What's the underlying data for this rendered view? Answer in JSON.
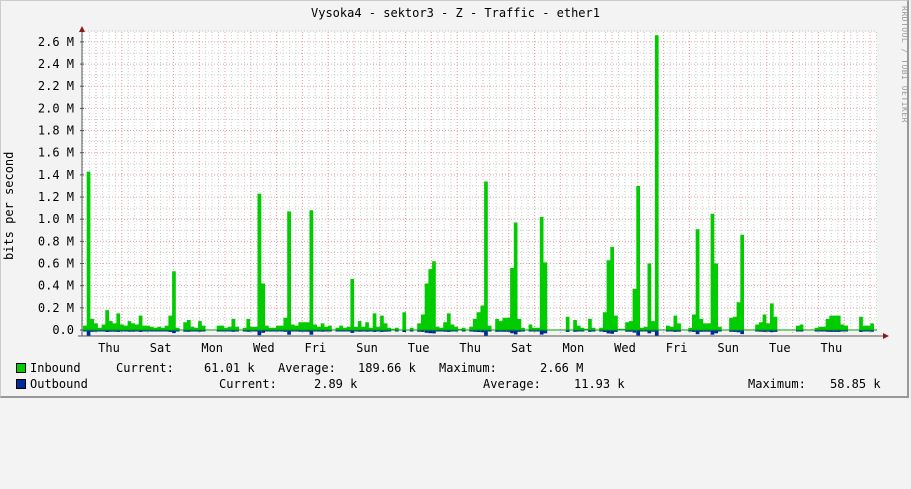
{
  "title": "Vysoka4 - sektor3 - Z - Traffic - ether1",
  "watermark": "RRDTOOL / TOBI OETIKER",
  "chart_data": {
    "type": "area",
    "title": "Vysoka4 - sektor3 - Z - Traffic - ether1",
    "ylabel": "bits per second",
    "xlabel": "",
    "ylim": [
      0,
      2.7
    ],
    "y_unit": "M",
    "y_ticks": [
      "0.0",
      "0.2 M",
      "0.4 M",
      "0.6 M",
      "0.8 M",
      "1.0 M",
      "1.2 M",
      "1.4 M",
      "1.6 M",
      "1.8 M",
      "2.0 M",
      "2.2 M",
      "2.4 M",
      "2.6 M"
    ],
    "x_ticks": [
      "Thu",
      "Sat",
      "Mon",
      "Wed",
      "Fri",
      "Sun",
      "Tue",
      "Thu",
      "Sat",
      "Mon",
      "Wed",
      "Fri",
      "Sun",
      "Tue",
      "Thu"
    ],
    "grid": true,
    "legend_position": "bottom",
    "series": [
      {
        "name": "Inbound",
        "color": "#00cc00",
        "style": "area",
        "values": [
          0.04,
          1.43,
          0.1,
          0.06,
          0.02,
          0.05,
          0.18,
          0.08,
          0.06,
          0.15,
          0.05,
          0.04,
          0.08,
          0.06,
          0.05,
          0.13,
          0.04,
          0.04,
          0.03,
          0.02,
          0.03,
          0.02,
          0.04,
          0.13,
          0.53,
          0.02,
          0.0,
          0.07,
          0.09,
          0.03,
          0.02,
          0.08,
          0.04,
          0.0,
          0.0,
          0.0,
          0.04,
          0.04,
          0.02,
          0.03,
          0.1,
          0.03,
          0.0,
          0.02,
          0.1,
          0.03,
          0.03,
          1.23,
          0.42,
          0.04,
          0.02,
          0.02,
          0.04,
          0.04,
          0.11,
          1.07,
          0.05,
          0.04,
          0.07,
          0.07,
          0.07,
          1.08,
          0.05,
          0.03,
          0.06,
          0.03,
          0.04,
          0.0,
          0.02,
          0.04,
          0.02,
          0.03,
          0.46,
          0.03,
          0.08,
          0.03,
          0.07,
          0.02,
          0.15,
          0.03,
          0.13,
          0.06,
          0.02,
          0.01,
          0.02,
          0.0,
          0.16,
          0.0,
          0.02,
          0.0,
          0.06,
          0.14,
          0.42,
          0.55,
          0.62,
          0.03,
          0.02,
          0.07,
          0.15,
          0.05,
          0.03,
          0.01,
          0.02,
          0.0,
          0.03,
          0.1,
          0.16,
          0.22,
          1.34,
          0.04,
          0.0,
          0.1,
          0.08,
          0.11,
          0.11,
          0.56,
          0.97,
          0.1,
          0.02,
          0.0,
          0.05,
          0.02,
          0.02,
          1.02,
          0.61,
          0.0,
          0.0,
          0.0,
          0.0,
          0.0,
          0.12,
          0.0,
          0.09,
          0.04,
          0.02,
          0.01,
          0.1,
          0.02,
          0.0,
          0.02,
          0.16,
          0.63,
          0.75,
          0.13,
          0.01,
          0.01,
          0.07,
          0.08,
          0.37,
          1.3,
          0.02,
          0.03,
          0.6,
          0.08,
          2.66,
          0.0,
          0.0,
          0.04,
          0.03,
          0.13,
          0.06,
          0.0,
          0.0,
          0.02,
          0.14,
          0.91,
          0.1,
          0.06,
          0.06,
          1.05,
          0.6,
          0.03,
          0.0,
          0.0,
          0.11,
          0.12,
          0.25,
          0.86,
          0.0,
          0.0,
          0.0,
          0.05,
          0.07,
          0.14,
          0.06,
          0.24,
          0.12,
          0.0,
          0.0,
          0.0,
          0.0,
          0.0,
          0.04,
          0.05,
          0.0,
          0.0,
          0.0,
          0.02,
          0.03,
          0.03,
          0.1,
          0.13,
          0.13,
          0.13,
          0.05,
          0.04,
          0.0,
          0.0,
          0.0,
          0.12,
          0.04,
          0.04,
          0.06
        ]
      },
      {
        "name": "Outbound",
        "color": "#002a97",
        "style": "line-mirrored-below-axis",
        "values_k_approx_note": "small negative-plotted bars near zero, peaks around 58.85 k"
      }
    ],
    "legend": [
      {
        "name": "Inbound",
        "current": "61.01 k",
        "average": "189.66 k",
        "maximum": "2.66 M"
      },
      {
        "name": "Outbound",
        "current": "2.89 k",
        "average": "11.93 k",
        "maximum": "58.85 k"
      }
    ]
  },
  "legend": {
    "inbound": {
      "label": "Inbound",
      "current_label": "Current:",
      "current": "61.01 k",
      "average_label": "Average:",
      "average": "189.66 k",
      "maximum_label": "Maximum:",
      "maximum": "2.66 M",
      "color": "#00cc00"
    },
    "outbound": {
      "label": "Outbound",
      "current_label": "Current:",
      "current": "2.89 k",
      "average_label": "Average:",
      "average": "11.93 k",
      "maximum_label": "Maximum:",
      "maximum": "58.85 k",
      "color": "#002a97"
    }
  },
  "colors": {
    "background": "#f3f3f3",
    "plot_background": "#ffffff",
    "major_grid": "#e8a0a0",
    "minor_grid": "#cccccc",
    "axis": "#555555",
    "arrow": "#8b1a1a"
  }
}
